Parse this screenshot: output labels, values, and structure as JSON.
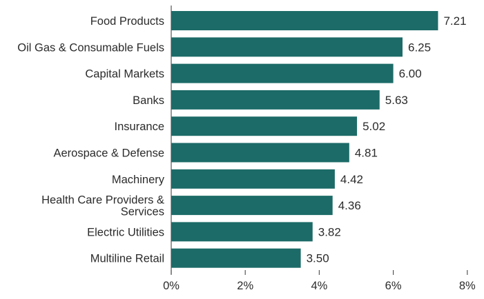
{
  "chart_data": {
    "type": "bar",
    "orientation": "horizontal",
    "categories": [
      "Food Products",
      "Oil Gas & Consumable Fuels",
      "Capital Markets",
      "Banks",
      "Insurance",
      "Aerospace & Defense",
      "Machinery",
      "Health Care Providers & Services",
      "Electric Utilities",
      "Multiline Retail"
    ],
    "category_label_lines": [
      [
        "Food Products"
      ],
      [
        "Oil Gas & Consumable Fuels"
      ],
      [
        "Capital Markets"
      ],
      [
        "Banks"
      ],
      [
        "Insurance"
      ],
      [
        "Aerospace & Defense"
      ],
      [
        "Machinery"
      ],
      [
        "Health Care Providers &",
        "Services"
      ],
      [
        "Electric Utilities"
      ],
      [
        "Multiline Retail"
      ]
    ],
    "values": [
      7.21,
      6.25,
      6.0,
      5.63,
      5.02,
      4.81,
      4.42,
      4.36,
      3.82,
      3.5
    ],
    "value_labels": [
      "7.21",
      "6.25",
      "6.00",
      "5.63",
      "5.02",
      "4.81",
      "4.42",
      "4.36",
      "3.82",
      "3.50"
    ],
    "xlim": [
      0,
      8
    ],
    "x_ticks": [
      0,
      2,
      4,
      6,
      8
    ],
    "x_tick_labels": [
      "0%",
      "2%",
      "4%",
      "6%",
      "8%"
    ],
    "title": "",
    "xlabel": "",
    "ylabel": "",
    "grid": false,
    "legend": "none",
    "colors": {
      "bar": "#1c6b68",
      "axis": "#555555",
      "text": "#2b2b2b"
    }
  }
}
